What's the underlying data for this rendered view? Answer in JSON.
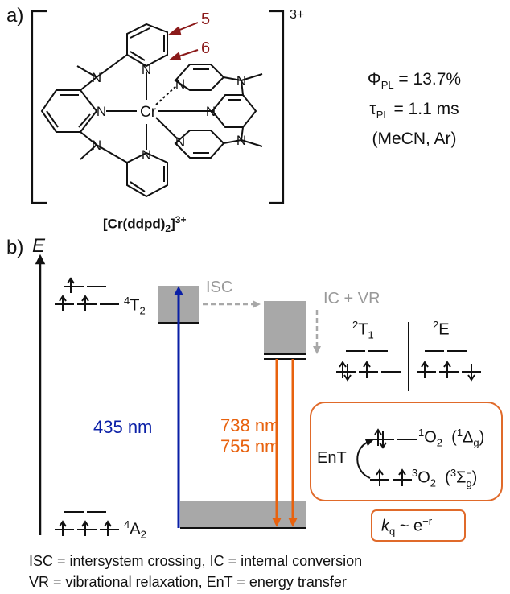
{
  "panel_a": {
    "label": "a)",
    "charge": "3+",
    "position_labels": [
      "5",
      "6"
    ],
    "phi_symbol": "Φ",
    "phi_sub": "PL",
    "phi_value": " = 13.7%",
    "tau_symbol": "τ",
    "tau_sub": "PL",
    "tau_value": " = 1.1 ms",
    "conditions": "(MeCN, Ar)",
    "complex_prefix": "[Cr(ddpd)",
    "complex_sub": "2",
    "complex_suffix": "]",
    "complex_sup": "3+",
    "atoms": {
      "N": "N",
      "Cr": "Cr"
    }
  },
  "panel_b": {
    "label": "b)",
    "axis_label": "E",
    "state_4T2": {
      "pre": "4",
      "main": "T",
      "sub": "2"
    },
    "state_4A2": {
      "pre": "4",
      "main": "A",
      "sub": "2"
    },
    "state_2T1": {
      "pre": "2",
      "main": "T",
      "sub": "1"
    },
    "state_2E": {
      "pre": "2",
      "main": "E"
    },
    "isc_label": "ISC",
    "icvr_label": "IC + VR",
    "absorption": "435 nm",
    "emission_1": "738 nm",
    "emission_2": "755 nm",
    "ent_label": "EnT",
    "singlet_o2": {
      "pre": "1",
      "main": "O",
      "sub": "2",
      "term_pre": "1",
      "term": "Δ",
      "term_sub": "g"
    },
    "triplet_o2": {
      "pre": "3",
      "main": "O",
      "sub": "2",
      "term_pre": "3",
      "term": "Σ",
      "term_sub": "g",
      "term_sup": "−"
    },
    "kq": {
      "k": "k",
      "sub": "q",
      "rel": " ~ e",
      "sup": "−r"
    }
  },
  "legend": {
    "line1": "ISC = intersystem crossing, IC = internal conversion",
    "line2": "VR = vibrational relaxation, EnT = energy transfer"
  },
  "colors": {
    "blue": "#0a1fa6",
    "orange": "#e8620e",
    "gray": "#a8a8a8",
    "box": "#e06a2a",
    "dark_red": "#8b1a1a"
  }
}
